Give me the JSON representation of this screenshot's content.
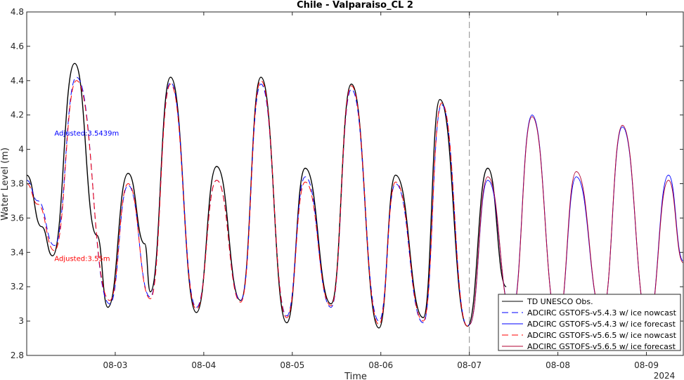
{
  "chart_data": {
    "type": "line",
    "title": "Chile - Valparaiso_CL 2",
    "xlabel": "Time",
    "ylabel": "Water Level (m)",
    "year_label": "2024",
    "x_range": [
      "2024-08-02T00:00",
      "2024-08-09T10:00"
    ],
    "ylim": [
      2.8,
      4.8
    ],
    "yticks": [
      2.8,
      3,
      3.2,
      3.4,
      3.6,
      3.8,
      4,
      4.2,
      4.4,
      4.6,
      4.8
    ],
    "ytick_labels": [
      "2.8",
      "3",
      "3.2",
      "3.4",
      "3.6",
      "3.8",
      "4",
      "4.2",
      "4.4",
      "4.6",
      "4.8"
    ],
    "xticks": [
      "2024-08-03",
      "2024-08-04",
      "2024-08-05",
      "2024-08-06",
      "2024-08-07",
      "2024-08-08",
      "2024-08-09"
    ],
    "xtick_labels": [
      "08-03",
      "08-04",
      "08-05",
      "08-06",
      "08-07",
      "08-08",
      "08-09"
    ],
    "forecast_start": "2024-08-07T00:00",
    "grid": false,
    "legend_position": "bottom-right",
    "annotations": [
      {
        "text": "Adjusted:3.5439m",
        "color": "#0000ff",
        "x": "2024-08-02T07:30",
        "y": 4.08
      },
      {
        "text": "Adjusted:3.55m",
        "color": "#ff0000",
        "x": "2024-08-02T07:30",
        "y": 3.35
      }
    ],
    "series": [
      {
        "name": "TD UNESCO Obs.",
        "color": "#000000",
        "dash": "solid",
        "points": [
          [
            "2024-08-02T00:00",
            3.85
          ],
          [
            "2024-08-02T04:00",
            3.55
          ],
          [
            "2024-08-02T07:00",
            3.38
          ],
          [
            "2024-08-02T13:00",
            4.5
          ],
          [
            "2024-08-02T19:00",
            3.5
          ],
          [
            "2024-08-02T22:00",
            3.08
          ],
          [
            "2024-08-03T03:30",
            3.86
          ],
          [
            "2024-08-03T08:00",
            3.45
          ],
          [
            "2024-08-03T09:30",
            3.17
          ],
          [
            "2024-08-03T15:00",
            4.42
          ],
          [
            "2024-08-03T22:00",
            3.05
          ],
          [
            "2024-08-04T03:30",
            3.9
          ],
          [
            "2024-08-04T10:00",
            3.12
          ],
          [
            "2024-08-04T15:30",
            4.42
          ],
          [
            "2024-08-04T22:30",
            2.99
          ],
          [
            "2024-08-05T03:30",
            3.89
          ],
          [
            "2024-08-05T10:30",
            3.1
          ],
          [
            "2024-08-05T16:00",
            4.38
          ],
          [
            "2024-08-05T23:30",
            2.96
          ],
          [
            "2024-08-06T04:00",
            3.85
          ],
          [
            "2024-08-06T11:30",
            3.02
          ],
          [
            "2024-08-06T16:00",
            4.29
          ],
          [
            "2024-08-06T23:30",
            2.97
          ],
          [
            "2024-08-07T05:00",
            3.89
          ],
          [
            "2024-08-07T10:00",
            3.2
          ]
        ]
      },
      {
        "name": "ADCIRC GSTOFS-v5.4.3 w/ ice nowcast",
        "color": "#0000ff",
        "dash": "long-dash",
        "points": [
          [
            "2024-08-02T00:00",
            3.82
          ],
          [
            "2024-08-02T03:00",
            3.7
          ],
          [
            "2024-08-02T07:30",
            3.44
          ],
          [
            "2024-08-02T13:30",
            4.42
          ],
          [
            "2024-08-02T22:30",
            3.1
          ],
          [
            "2024-08-03T03:30",
            3.79
          ],
          [
            "2024-08-03T09:30",
            3.14
          ],
          [
            "2024-08-03T15:00",
            4.39
          ],
          [
            "2024-08-03T22:00",
            3.08
          ],
          [
            "2024-08-04T03:30",
            3.82
          ],
          [
            "2024-08-04T10:00",
            3.12
          ],
          [
            "2024-08-04T15:30",
            4.38
          ],
          [
            "2024-08-04T22:30",
            3.03
          ],
          [
            "2024-08-05T03:30",
            3.84
          ],
          [
            "2024-08-05T10:30",
            3.08
          ],
          [
            "2024-08-05T16:00",
            4.35
          ],
          [
            "2024-08-05T23:30",
            3.0
          ],
          [
            "2024-08-06T04:00",
            3.8
          ],
          [
            "2024-08-06T11:30",
            2.99
          ],
          [
            "2024-08-06T16:30",
            4.26
          ],
          [
            "2024-08-06T23:30",
            2.97
          ],
          [
            "2024-08-07T00:00",
            2.98
          ]
        ]
      },
      {
        "name": "ADCIRC GSTOFS-v5.4.3 w/ ice forecast",
        "color": "#0000ff",
        "dash": "solid",
        "points": [
          [
            "2024-08-07T00:00",
            2.98
          ],
          [
            "2024-08-07T05:00",
            3.82
          ],
          [
            "2024-08-07T11:30",
            3.05
          ],
          [
            "2024-08-07T17:00",
            4.2
          ],
          [
            "2024-08-08T00:00",
            3.0
          ],
          [
            "2024-08-08T05:00",
            3.84
          ],
          [
            "2024-08-08T12:00",
            3.05
          ],
          [
            "2024-08-08T17:30",
            4.13
          ],
          [
            "2024-08-09T00:30",
            3.0
          ],
          [
            "2024-08-09T06:00",
            3.85
          ],
          [
            "2024-08-09T10:00",
            3.35
          ]
        ]
      },
      {
        "name": "ADCIRC GSTOFS-v5.6.5 w/ ice nowcast",
        "color": "#ff0000",
        "dash": "long-dash",
        "points": [
          [
            "2024-08-02T00:00",
            3.8
          ],
          [
            "2024-08-02T03:00",
            3.68
          ],
          [
            "2024-08-02T07:30",
            3.41
          ],
          [
            "2024-08-02T13:30",
            4.4
          ],
          [
            "2024-08-02T22:30",
            3.12
          ],
          [
            "2024-08-03T03:30",
            3.8
          ],
          [
            "2024-08-03T09:30",
            3.13
          ],
          [
            "2024-08-03T15:00",
            4.38
          ],
          [
            "2024-08-03T22:00",
            3.07
          ],
          [
            "2024-08-04T03:30",
            3.82
          ],
          [
            "2024-08-04T10:00",
            3.11
          ],
          [
            "2024-08-04T15:30",
            4.4
          ],
          [
            "2024-08-04T22:30",
            3.02
          ],
          [
            "2024-08-05T03:30",
            3.81
          ],
          [
            "2024-08-05T10:30",
            3.09
          ],
          [
            "2024-08-05T16:00",
            4.37
          ],
          [
            "2024-08-05T23:30",
            2.98
          ],
          [
            "2024-08-06T04:00",
            3.81
          ],
          [
            "2024-08-06T11:30",
            3.0
          ],
          [
            "2024-08-06T16:30",
            4.27
          ],
          [
            "2024-08-06T23:30",
            2.97
          ],
          [
            "2024-08-07T00:00",
            2.98
          ]
        ]
      },
      {
        "name": "ADCIRC GSTOFS-v5.6.5 w/ ice forecast",
        "color": "#b00030",
        "dash": "solid",
        "points": [
          [
            "2024-08-07T00:00",
            2.98
          ],
          [
            "2024-08-07T05:00",
            3.84
          ],
          [
            "2024-08-07T11:30",
            3.04
          ],
          [
            "2024-08-07T17:00",
            4.19
          ],
          [
            "2024-08-08T00:00",
            3.0
          ],
          [
            "2024-08-08T05:00",
            3.87
          ],
          [
            "2024-08-08T12:00",
            3.05
          ],
          [
            "2024-08-08T17:30",
            4.14
          ],
          [
            "2024-08-09T00:30",
            3.0
          ],
          [
            "2024-08-09T06:00",
            3.82
          ],
          [
            "2024-08-09T10:00",
            3.34
          ]
        ]
      }
    ]
  }
}
